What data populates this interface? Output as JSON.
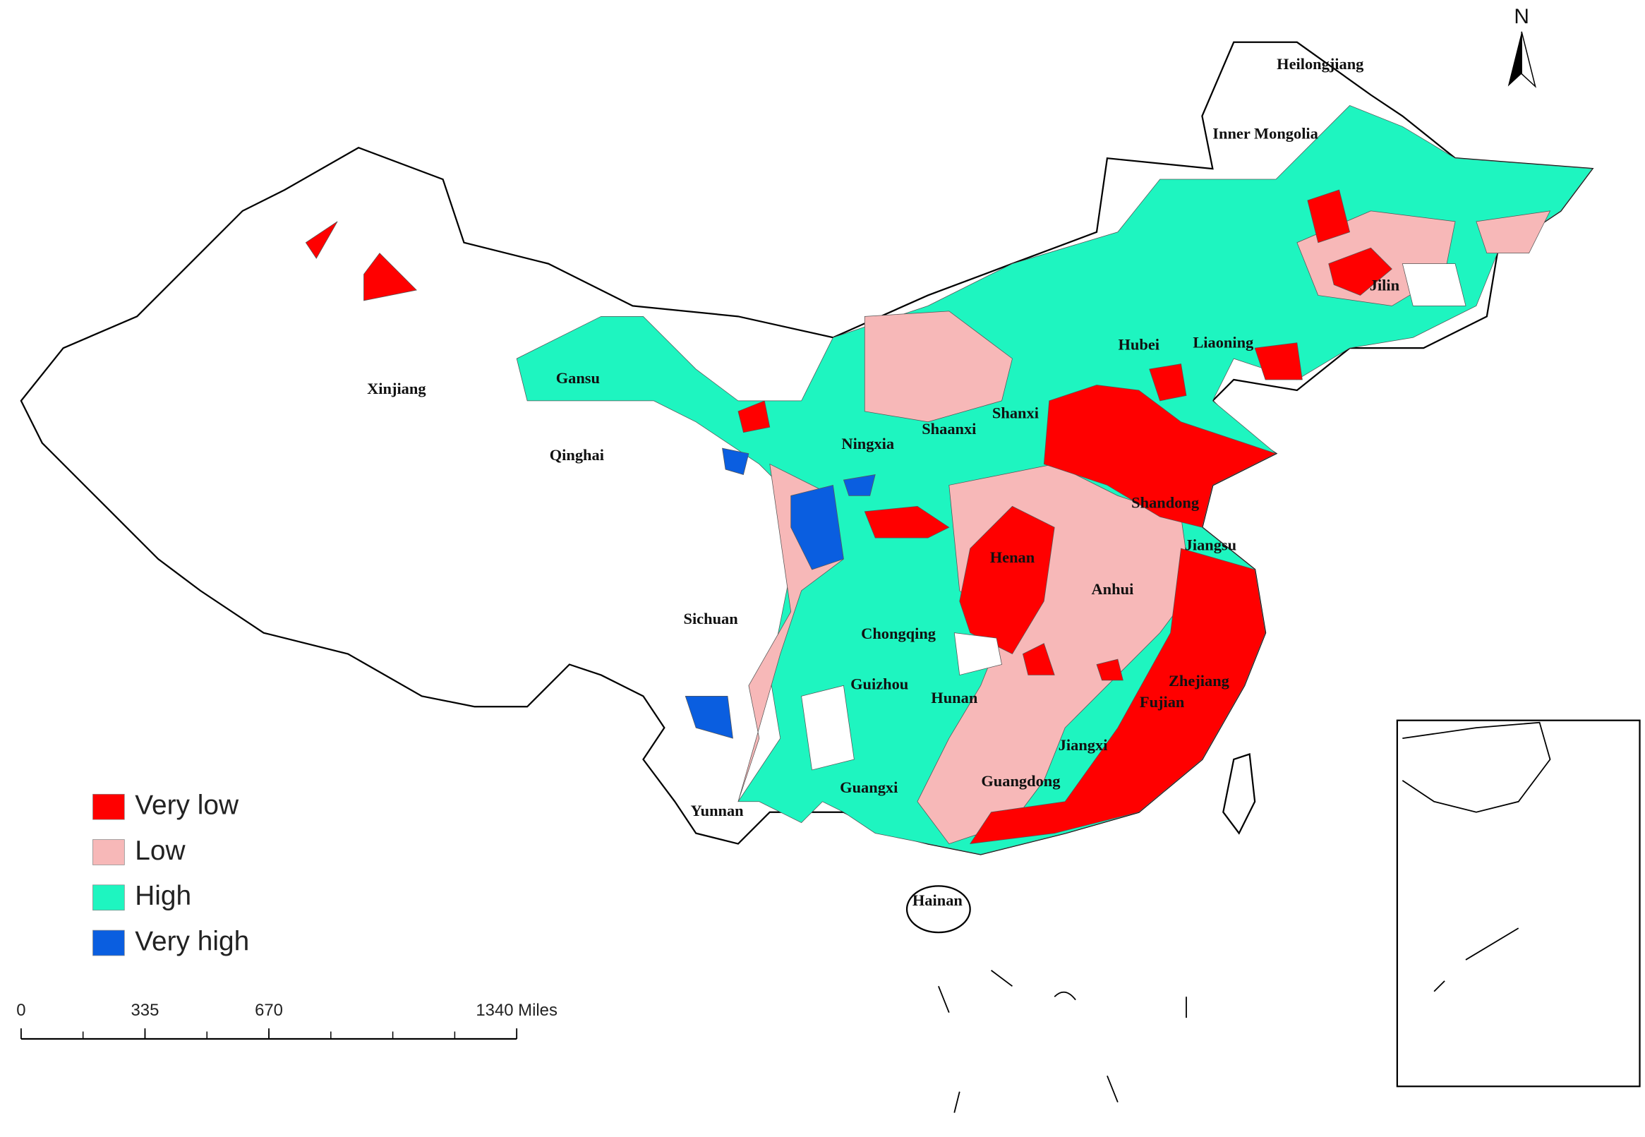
{
  "north_arrow": "N",
  "provinces": [
    "Heilongjiang",
    "Inner Mongolia",
    "Jilin",
    "Liaoning",
    "Hubei",
    "Gansu",
    "Xinjiang",
    "Qinghai",
    "Ningxia",
    "Shaanxi",
    "Shanxi",
    "Shandong",
    "Jiangsu",
    "Henan",
    "Anhui",
    "Sichuan",
    "Chongqing",
    "Guizhou",
    "Hunan",
    "Zhejiang",
    "Fujian",
    "Jiangxi",
    "Guangxi",
    "Guangdong",
    "Yunnan",
    "Hainan"
  ],
  "legend": [
    {
      "label": "Very low",
      "color": "#ff0000"
    },
    {
      "label": "Low",
      "color": "#f7b8b8"
    },
    {
      "label": "High",
      "color": "#1ef5c0"
    },
    {
      "label": "Very high",
      "color": "#0a5ee0"
    }
  ],
  "scale_bar": {
    "ticks": [
      0,
      335,
      670,
      {
        "value": 1340,
        "label": "1340 Miles"
      }
    ]
  }
}
